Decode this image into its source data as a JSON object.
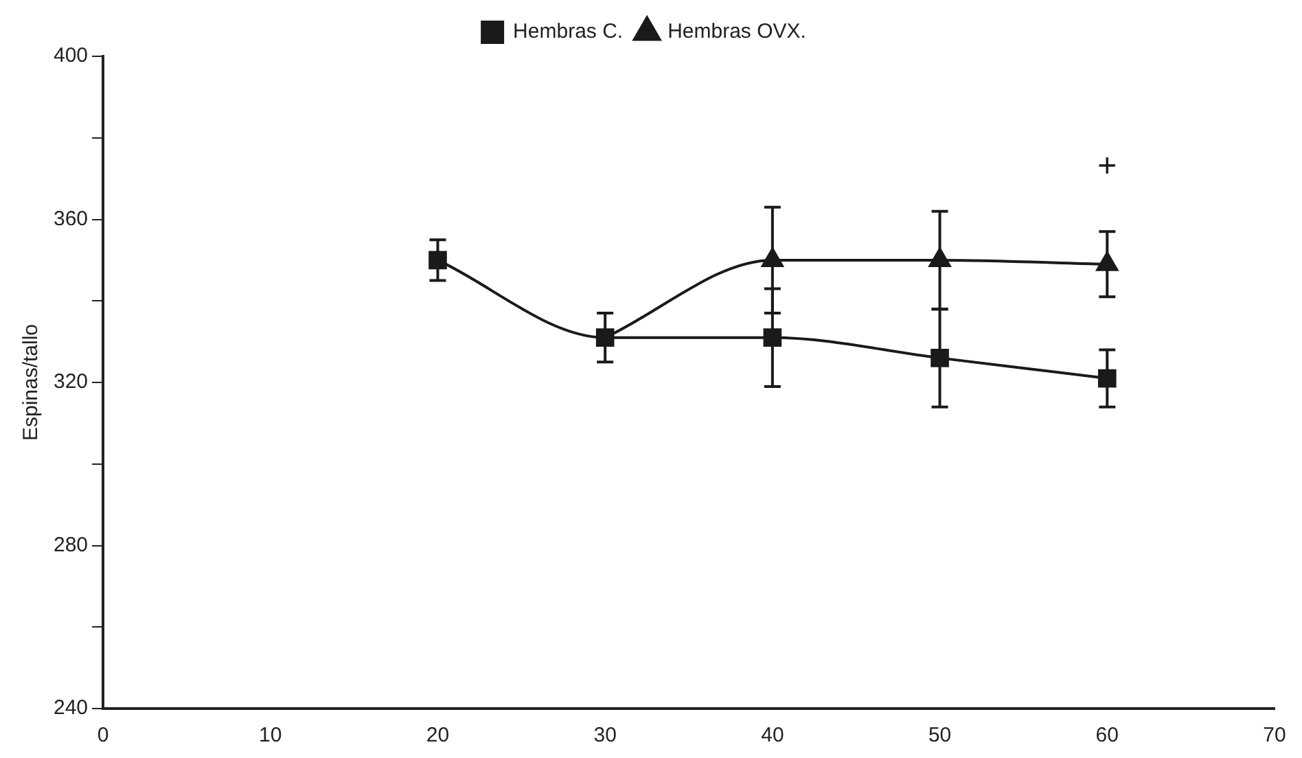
{
  "chart_data": {
    "type": "line",
    "ylabel": "Espinas/tallo",
    "x": [
      20,
      30,
      40,
      50,
      60
    ],
    "series": [
      {
        "name": "Hembras C.",
        "color": "#1a1a1a",
        "marker": "square",
        "values": [
          350,
          331,
          331,
          326,
          321
        ],
        "errors": [
          5,
          6,
          12,
          12,
          7
        ]
      },
      {
        "name": "Hembras OVX.",
        "color": "#1a1a1a",
        "marker": "triangle",
        "values": [
          null,
          331,
          350,
          350,
          349
        ],
        "errors": [
          null,
          null,
          13,
          12,
          8
        ]
      }
    ],
    "xlim": [
      0,
      70
    ],
    "xticks": [
      0,
      10,
      20,
      30,
      40,
      50,
      60,
      70
    ],
    "ylim": [
      240,
      400
    ],
    "yticks": [
      240,
      {
        "value": 260,
        "label": null
      },
      280,
      {
        "value": 300,
        "label": null
      },
      320,
      {
        "value": 340,
        "label": null
      },
      360,
      {
        "value": 380,
        "label": null
      },
      400
    ],
    "annotations": [
      "+"
    ],
    "grid": false,
    "legend": "top"
  }
}
